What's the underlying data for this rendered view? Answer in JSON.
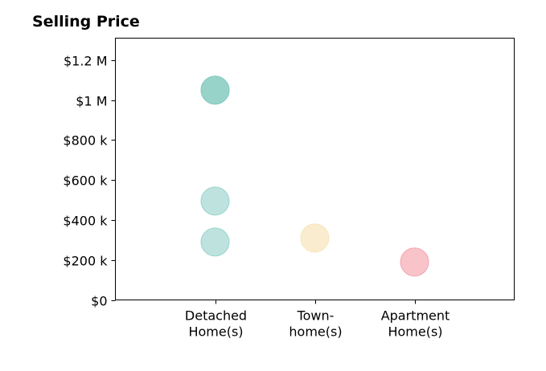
{
  "chart_data": {
    "type": "scatter",
    "title": "Selling Price",
    "xlabel": "",
    "ylabel": "",
    "categories": [
      [
        "Detached",
        "Home(s)"
      ],
      [
        "Town-",
        "home(s)"
      ],
      [
        "Apartment",
        "Home(s)"
      ]
    ],
    "xlim": [
      -1,
      3
    ],
    "ylim": [
      0,
      1310000
    ],
    "yticks": [
      0,
      200000,
      400000,
      600000,
      800000,
      1000000,
      1200000
    ],
    "ytick_labels": [
      "$0",
      "$200 k",
      "$400 k",
      "$600 k",
      "$800 k",
      "$1 M",
      "$1.2 M"
    ],
    "grid": false,
    "legend": "none",
    "points": [
      {
        "category": "Detached Home(s)",
        "x": 0,
        "y": 1050000,
        "color": "#7ec8bd",
        "opacity": 0.8
      },
      {
        "category": "Detached Home(s)",
        "x": 0,
        "y": 495000,
        "color": "#7ec8bd",
        "opacity": 0.5
      },
      {
        "category": "Detached Home(s)",
        "x": 0,
        "y": 290000,
        "color": "#7ec8bd",
        "opacity": 0.5
      },
      {
        "category": "Town-home(s)",
        "x": 1,
        "y": 310000,
        "color": "#f6dfa8",
        "opacity": 0.55
      },
      {
        "category": "Apartment Home(s)",
        "x": 2,
        "y": 190000,
        "color": "#f2939c",
        "opacity": 0.55
      }
    ]
  }
}
